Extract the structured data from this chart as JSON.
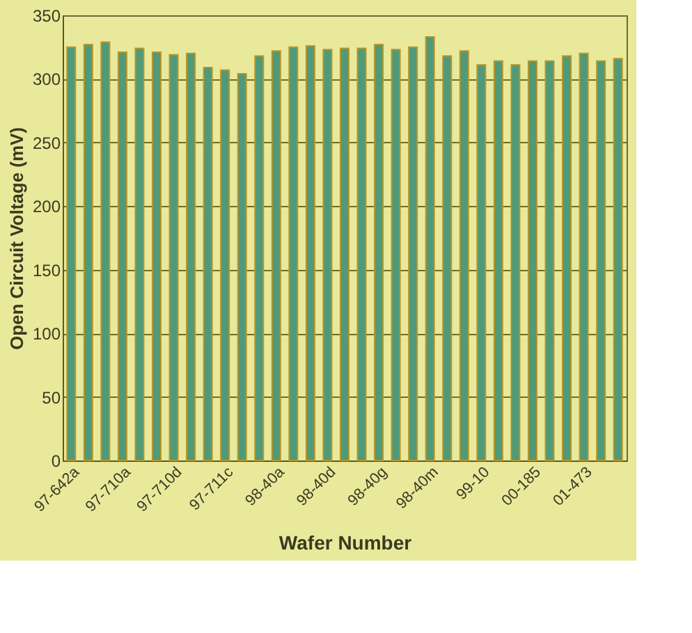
{
  "chart_data": {
    "type": "bar",
    "xlabel": "Wafer Number",
    "ylabel": "Open Circuit Voltage (mV)",
    "categories": [
      "97-642a",
      null,
      null,
      "97-710a",
      null,
      null,
      "97-710d",
      null,
      null,
      "97-711c",
      null,
      null,
      "98-40a",
      null,
      null,
      "98-40d",
      null,
      null,
      "98-40g",
      null,
      null,
      "98-40m",
      null,
      null,
      "99-10",
      null,
      null,
      "00-185",
      null,
      null,
      "01-473",
      null,
      null
    ],
    "values": [
      325,
      327,
      329,
      321,
      324,
      321,
      319,
      320,
      309,
      307,
      304,
      318,
      322,
      325,
      326,
      323,
      324,
      324,
      327,
      323,
      325,
      333,
      318,
      322,
      311,
      314,
      311,
      314,
      314,
      318,
      320,
      314,
      316
    ],
    "color": "#4f9a7a",
    "ylim": [
      0,
      350
    ],
    "yticks": [
      0,
      50,
      100,
      150,
      200,
      250,
      300,
      350
    ],
    "grid": "y"
  }
}
